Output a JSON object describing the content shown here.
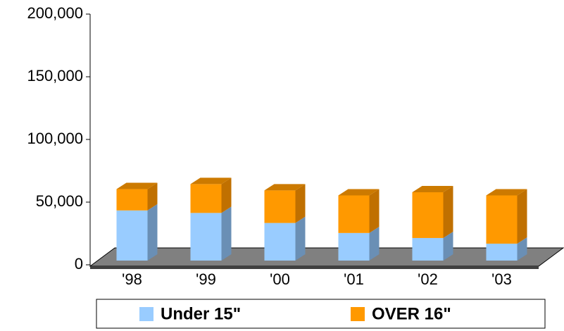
{
  "chart_data": {
    "type": "bar",
    "stacked": true,
    "three_d": true,
    "categories": [
      "'98",
      "'99",
      "'00",
      "'01",
      "'02",
      "'03"
    ],
    "series": [
      {
        "name": "Under 15\"",
        "color": "#99ccff",
        "values": [
          40000,
          38000,
          30000,
          22000,
          18000,
          13500
        ]
      },
      {
        "name": "OVER 16\"",
        "color": "#ff9900",
        "values": [
          17000,
          23000,
          26000,
          30000,
          36500,
          38500
        ]
      }
    ],
    "ylim": [
      0,
      200000
    ],
    "yticks": [
      0,
      {
        "value": 50000,
        "label": "50,000"
      },
      {
        "value": 100000,
        "label": "100,000"
      },
      {
        "value": 150000,
        "label": "150,000"
      },
      {
        "value": 200000,
        "label": "200,000"
      }
    ],
    "legend": "bottom"
  }
}
